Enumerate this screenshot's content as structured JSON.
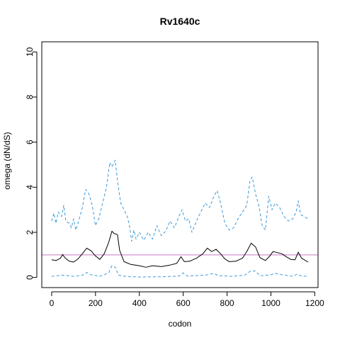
{
  "chart_data": {
    "type": "line",
    "title": "Rv1640c",
    "xlabel": "codon",
    "ylabel": "omega (dN/dS)",
    "xlim": [
      -45,
      1215
    ],
    "ylim": [
      -0.45,
      10.45
    ],
    "xticks": [
      0,
      200,
      400,
      600,
      800,
      1000,
      1200
    ],
    "yticks": [
      0,
      2,
      4,
      6,
      8,
      10
    ],
    "grid": false,
    "reference_line": {
      "y": 1,
      "color": "#c678c6"
    },
    "series": [
      {
        "role": "estimate",
        "color": "#000000",
        "dash": "solid",
        "points": [
          [
            0,
            0.78
          ],
          [
            20,
            0.75
          ],
          [
            40,
            0.85
          ],
          [
            50,
            1.02
          ],
          [
            60,
            0.88
          ],
          [
            80,
            0.72
          ],
          [
            100,
            0.68
          ],
          [
            120,
            0.82
          ],
          [
            140,
            1.05
          ],
          [
            160,
            1.3
          ],
          [
            180,
            1.18
          ],
          [
            200,
            0.95
          ],
          [
            220,
            0.8
          ],
          [
            240,
            1.05
          ],
          [
            260,
            1.55
          ],
          [
            275,
            2.05
          ],
          [
            285,
            1.95
          ],
          [
            300,
            1.9
          ],
          [
            310,
            1.2
          ],
          [
            330,
            0.7
          ],
          [
            360,
            0.58
          ],
          [
            400,
            0.52
          ],
          [
            430,
            0.45
          ],
          [
            460,
            0.52
          ],
          [
            500,
            0.48
          ],
          [
            540,
            0.55
          ],
          [
            570,
            0.62
          ],
          [
            590,
            0.92
          ],
          [
            605,
            0.7
          ],
          [
            630,
            0.72
          ],
          [
            660,
            0.85
          ],
          [
            690,
            1.05
          ],
          [
            710,
            1.3
          ],
          [
            730,
            1.15
          ],
          [
            750,
            1.25
          ],
          [
            770,
            1.05
          ],
          [
            790,
            0.82
          ],
          [
            810,
            0.7
          ],
          [
            840,
            0.72
          ],
          [
            870,
            0.85
          ],
          [
            890,
            1.15
          ],
          [
            910,
            1.52
          ],
          [
            930,
            1.35
          ],
          [
            950,
            0.88
          ],
          [
            975,
            0.75
          ],
          [
            995,
            0.95
          ],
          [
            1010,
            1.15
          ],
          [
            1030,
            1.1
          ],
          [
            1050,
            1.05
          ],
          [
            1070,
            0.92
          ],
          [
            1090,
            0.8
          ],
          [
            1110,
            0.78
          ],
          [
            1125,
            1.12
          ],
          [
            1140,
            0.85
          ],
          [
            1170,
            0.68
          ]
        ]
      },
      {
        "role": "upper",
        "color": "#3a9ad9",
        "dash": "dashed",
        "points": [
          [
            0,
            2.5
          ],
          [
            10,
            2.85
          ],
          [
            20,
            2.4
          ],
          [
            30,
            2.9
          ],
          [
            45,
            2.7
          ],
          [
            55,
            3.2
          ],
          [
            65,
            2.5
          ],
          [
            80,
            2.4
          ],
          [
            90,
            2.2
          ],
          [
            100,
            2.6
          ],
          [
            110,
            2.1
          ],
          [
            120,
            2.4
          ],
          [
            140,
            3.1
          ],
          [
            155,
            3.9
          ],
          [
            170,
            3.7
          ],
          [
            185,
            3.2
          ],
          [
            200,
            2.3
          ],
          [
            215,
            2.6
          ],
          [
            230,
            3.2
          ],
          [
            250,
            4.0
          ],
          [
            265,
            5.1
          ],
          [
            275,
            4.9
          ],
          [
            290,
            5.2
          ],
          [
            300,
            4.3
          ],
          [
            315,
            3.3
          ],
          [
            330,
            3.0
          ],
          [
            345,
            2.7
          ],
          [
            355,
            2.3
          ],
          [
            365,
            1.6
          ],
          [
            375,
            2.1
          ],
          [
            385,
            1.7
          ],
          [
            400,
            2.0
          ],
          [
            420,
            1.65
          ],
          [
            440,
            2.0
          ],
          [
            460,
            1.7
          ],
          [
            480,
            2.3
          ],
          [
            500,
            1.85
          ],
          [
            520,
            2.05
          ],
          [
            540,
            2.5
          ],
          [
            560,
            2.2
          ],
          [
            580,
            2.7
          ],
          [
            595,
            3.0
          ],
          [
            610,
            2.5
          ],
          [
            625,
            2.6
          ],
          [
            640,
            2.0
          ],
          [
            660,
            2.5
          ],
          [
            680,
            2.9
          ],
          [
            700,
            3.3
          ],
          [
            720,
            3.1
          ],
          [
            740,
            3.6
          ],
          [
            755,
            3.85
          ],
          [
            770,
            3.3
          ],
          [
            790,
            2.4
          ],
          [
            810,
            2.1
          ],
          [
            830,
            2.2
          ],
          [
            850,
            2.6
          ],
          [
            870,
            2.9
          ],
          [
            890,
            3.2
          ],
          [
            905,
            4.3
          ],
          [
            915,
            4.45
          ],
          [
            930,
            3.7
          ],
          [
            945,
            3.2
          ],
          [
            960,
            2.3
          ],
          [
            975,
            2.1
          ],
          [
            990,
            3.6
          ],
          [
            1005,
            3.0
          ],
          [
            1020,
            3.3
          ],
          [
            1040,
            3.1
          ],
          [
            1060,
            2.7
          ],
          [
            1080,
            2.5
          ],
          [
            1100,
            2.6
          ],
          [
            1115,
            2.9
          ],
          [
            1125,
            3.4
          ],
          [
            1135,
            2.8
          ],
          [
            1150,
            2.7
          ],
          [
            1170,
            2.6
          ]
        ]
      },
      {
        "role": "lower",
        "color": "#3a9ad9",
        "dash": "dashed",
        "points": [
          [
            0,
            0.05
          ],
          [
            50,
            0.1
          ],
          [
            100,
            0.05
          ],
          [
            140,
            0.1
          ],
          [
            160,
            0.22
          ],
          [
            180,
            0.12
          ],
          [
            220,
            0.05
          ],
          [
            260,
            0.2
          ],
          [
            275,
            0.52
          ],
          [
            290,
            0.45
          ],
          [
            305,
            0.1
          ],
          [
            340,
            0.04
          ],
          [
            400,
            0.02
          ],
          [
            500,
            0.03
          ],
          [
            580,
            0.06
          ],
          [
            600,
            0.2
          ],
          [
            620,
            0.06
          ],
          [
            700,
            0.1
          ],
          [
            740,
            0.18
          ],
          [
            760,
            0.08
          ],
          [
            820,
            0.05
          ],
          [
            880,
            0.1
          ],
          [
            910,
            0.3
          ],
          [
            930,
            0.28
          ],
          [
            950,
            0.07
          ],
          [
            1000,
            0.12
          ],
          [
            1020,
            0.18
          ],
          [
            1050,
            0.12
          ],
          [
            1100,
            0.05
          ],
          [
            1120,
            0.15
          ],
          [
            1140,
            0.06
          ],
          [
            1170,
            0.05
          ]
        ]
      }
    ]
  }
}
